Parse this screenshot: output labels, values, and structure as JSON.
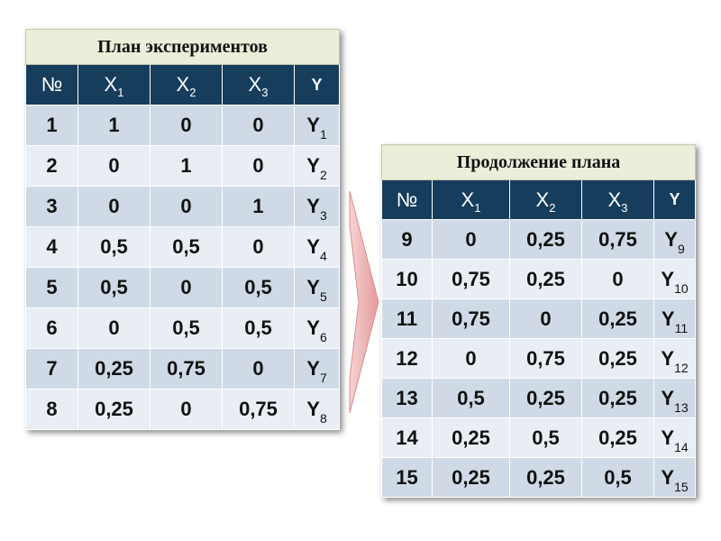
{
  "colors": {
    "title_bg": "#ebeed9",
    "header_bg": "#173d5d",
    "header_text": "#ffffff",
    "row_dark": "#cfdae6",
    "row_light": "#e9eef5",
    "arrow_fill": "#e7a5a5"
  },
  "table1": {
    "title": "План экспериментов",
    "headers": [
      {
        "base": "№",
        "sub": ""
      },
      {
        "base": "X",
        "sub": "1"
      },
      {
        "base": "X",
        "sub": "2"
      },
      {
        "base": "X",
        "sub": "3"
      },
      {
        "base": "Y",
        "sub": ""
      }
    ],
    "rows": [
      {
        "n": "1",
        "x1": "1",
        "x2": "0",
        "x3": "0",
        "y": "Y",
        "y_sub": "1"
      },
      {
        "n": "2",
        "x1": "0",
        "x2": "1",
        "x3": "0",
        "y": "Y",
        "y_sub": "2"
      },
      {
        "n": "3",
        "x1": "0",
        "x2": "0",
        "x3": "1",
        "y": "Y",
        "y_sub": "3"
      },
      {
        "n": "4",
        "x1": "0,5",
        "x2": "0,5",
        "x3": "0",
        "y": "Y",
        "y_sub": "4"
      },
      {
        "n": "5",
        "x1": "0,5",
        "x2": "0",
        "x3": "0,5",
        "y": "Y",
        "y_sub": "5"
      },
      {
        "n": "6",
        "x1": "0",
        "x2": "0,5",
        "x3": "0,5",
        "y": "Y",
        "y_sub": "6"
      },
      {
        "n": "7",
        "x1": "0,25",
        "x2": "0,75",
        "x3": "0",
        "y": "Y",
        "y_sub": "7"
      },
      {
        "n": "8",
        "x1": "0,25",
        "x2": "0",
        "x3": "0,75",
        "y": "Y",
        "y_sub": "8"
      }
    ]
  },
  "table2": {
    "title": "Продолжение плана",
    "headers": [
      {
        "base": "№",
        "sub": ""
      },
      {
        "base": "X",
        "sub": "1"
      },
      {
        "base": "X",
        "sub": "2"
      },
      {
        "base": "X",
        "sub": "3"
      },
      {
        "base": "Y",
        "sub": ""
      }
    ],
    "rows": [
      {
        "n": "9",
        "x1": "0",
        "x2": "0,25",
        "x3": "0,75",
        "y": "Y",
        "y_sub": "9"
      },
      {
        "n": "10",
        "x1": "0,75",
        "x2": "0,25",
        "x3": "0",
        "y": "Y",
        "y_sub": "10"
      },
      {
        "n": "11",
        "x1": "0,75",
        "x2": "0",
        "x3": "0,25",
        "y": "Y",
        "y_sub": "11"
      },
      {
        "n": "12",
        "x1": "0",
        "x2": "0,75",
        "x3": "0,25",
        "y": "Y",
        "y_sub": "12"
      },
      {
        "n": "13",
        "x1": "0,5",
        "x2": "0,25",
        "x3": "0,25",
        "y": "Y",
        "y_sub": "13"
      },
      {
        "n": "14",
        "x1": "0,25",
        "x2": "0,5",
        "x3": "0,25",
        "y": "Y",
        "y_sub": "14"
      },
      {
        "n": "15",
        "x1": "0,25",
        "x2": "0,25",
        "x3": "0,5",
        "y": "Y",
        "y_sub": "15"
      }
    ]
  },
  "arrow": {
    "icon": "arrow-right-icon",
    "direction": "right"
  }
}
